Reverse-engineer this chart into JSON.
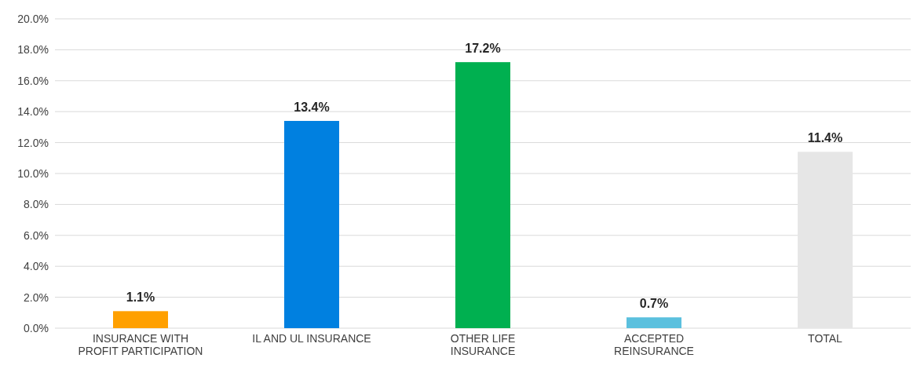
{
  "chart_data": {
    "type": "bar",
    "categories": [
      "INSURANCE WITH\nPROFIT PARTICIPATION",
      "IL AND UL INSURANCE",
      "OTHER LIFE\nINSURANCE",
      "ACCEPTED\nREINSURANCE",
      "TOTAL"
    ],
    "values": [
      1.1,
      13.4,
      17.2,
      0.7,
      11.4
    ],
    "colors": [
      "#ffa000",
      "#0080e0",
      "#00b050",
      "#5bc0de",
      "#e6e6e6"
    ],
    "value_labels": [
      "1.1%",
      "13.4%",
      "17.2%",
      "0.7%",
      "11.4%"
    ],
    "ylim": [
      0,
      20
    ],
    "yticks": [
      {
        "value": 0,
        "label": "0.0%"
      },
      {
        "value": 2,
        "label": "2.0%"
      },
      {
        "value": 4,
        "label": "4.0%"
      },
      {
        "value": 6,
        "label": "6.0%"
      },
      {
        "value": 8,
        "label": "8.0%"
      },
      {
        "value": 10,
        "label": "10.0%"
      },
      {
        "value": 12,
        "label": "12.0%"
      },
      {
        "value": 14,
        "label": "14.0%"
      },
      {
        "value": 16,
        "label": "16.0%"
      },
      {
        "value": 18,
        "label": "18.0%"
      },
      {
        "value": 20,
        "label": "20.0%"
      }
    ],
    "grid": "y"
  }
}
